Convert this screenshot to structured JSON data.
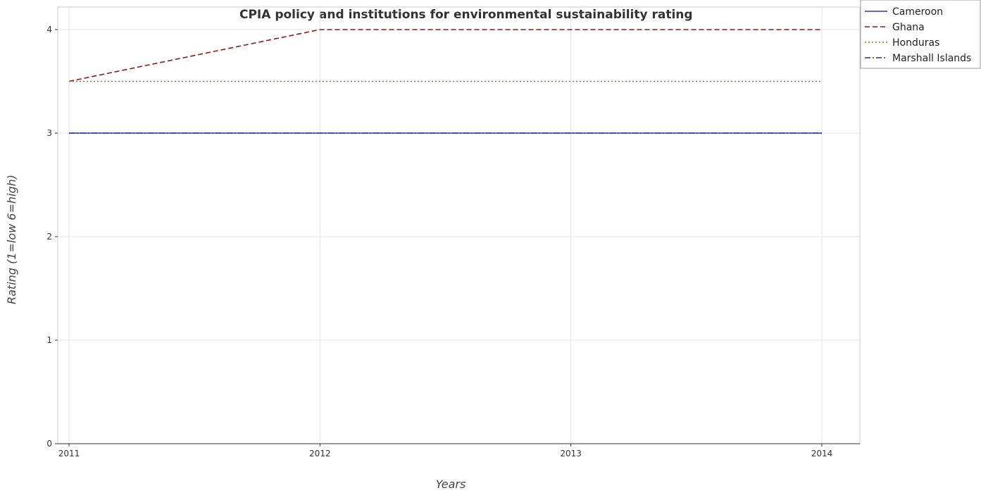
{
  "chart_data": {
    "type": "line",
    "title": "CPIA policy and institutions for environmental sustainability rating",
    "xlabel": "Years",
    "ylabel": "Rating (1=low 6=high)",
    "categories": [
      "2011",
      "2012",
      "2013",
      "2014"
    ],
    "ylim": [
      0,
      4
    ],
    "yticks": [
      "0",
      "1",
      "2",
      "3",
      "4"
    ],
    "grid": true,
    "legend_position": "top-right",
    "series": [
      {
        "name": "Cameroon",
        "values": [
          3,
          3,
          3,
          3
        ],
        "color": "#3a2fbf",
        "dash": "solid"
      },
      {
        "name": "Ghana",
        "values": [
          3.5,
          4,
          4,
          4
        ],
        "color": "#8b1a1a",
        "dash": "dashed"
      },
      {
        "name": "Honduras",
        "values": [
          3.5,
          3.5,
          3.5,
          3.5
        ],
        "color": "#6b8e23",
        "dash": "dotted"
      },
      {
        "name": "Marshall Islands",
        "values": [
          3,
          3,
          3,
          3
        ],
        "color": "#1f3a93",
        "dash": "dashdot"
      }
    ]
  }
}
